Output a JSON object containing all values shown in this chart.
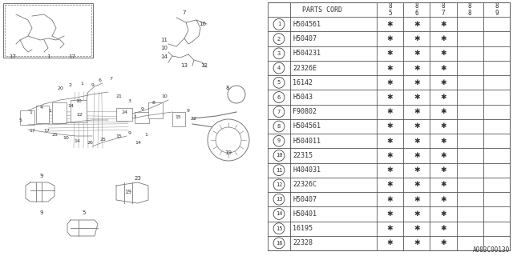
{
  "fig_width": 6.4,
  "fig_height": 3.2,
  "bg_color": "#ffffff",
  "parts": [
    {
      "num": "1",
      "code": "H504561",
      "marks": [
        true,
        true,
        true,
        false,
        false
      ]
    },
    {
      "num": "2",
      "code": "H50407",
      "marks": [
        true,
        true,
        true,
        false,
        false
      ]
    },
    {
      "num": "3",
      "code": "H504231",
      "marks": [
        true,
        true,
        true,
        false,
        false
      ]
    },
    {
      "num": "4",
      "code": "22326E",
      "marks": [
        true,
        true,
        true,
        false,
        false
      ]
    },
    {
      "num": "5",
      "code": "16142",
      "marks": [
        true,
        true,
        true,
        false,
        false
      ]
    },
    {
      "num": "6",
      "code": "H5043",
      "marks": [
        true,
        true,
        true,
        false,
        false
      ]
    },
    {
      "num": "7",
      "code": "F90802",
      "marks": [
        true,
        true,
        true,
        false,
        false
      ]
    },
    {
      "num": "8",
      "code": "H504561",
      "marks": [
        true,
        true,
        true,
        false,
        false
      ]
    },
    {
      "num": "9",
      "code": "H504011",
      "marks": [
        true,
        true,
        true,
        false,
        false
      ]
    },
    {
      "num": "10",
      "code": "22315",
      "marks": [
        true,
        true,
        true,
        false,
        false
      ]
    },
    {
      "num": "11",
      "code": "H404031",
      "marks": [
        true,
        true,
        true,
        false,
        false
      ]
    },
    {
      "num": "12",
      "code": "22326C",
      "marks": [
        true,
        true,
        true,
        false,
        false
      ]
    },
    {
      "num": "13",
      "code": "H50407",
      "marks": [
        true,
        true,
        true,
        false,
        false
      ]
    },
    {
      "num": "14",
      "code": "H50401",
      "marks": [
        true,
        true,
        true,
        false,
        false
      ]
    },
    {
      "num": "15",
      "code": "16195",
      "marks": [
        true,
        true,
        true,
        false,
        false
      ]
    },
    {
      "num": "16",
      "code": "22328",
      "marks": [
        true,
        true,
        true,
        false,
        false
      ]
    }
  ],
  "year_headers": [
    "85",
    "86",
    "87",
    "88",
    "89"
  ],
  "diagram_label": "A083C00130",
  "lc": "#777777",
  "tc": "#333333"
}
